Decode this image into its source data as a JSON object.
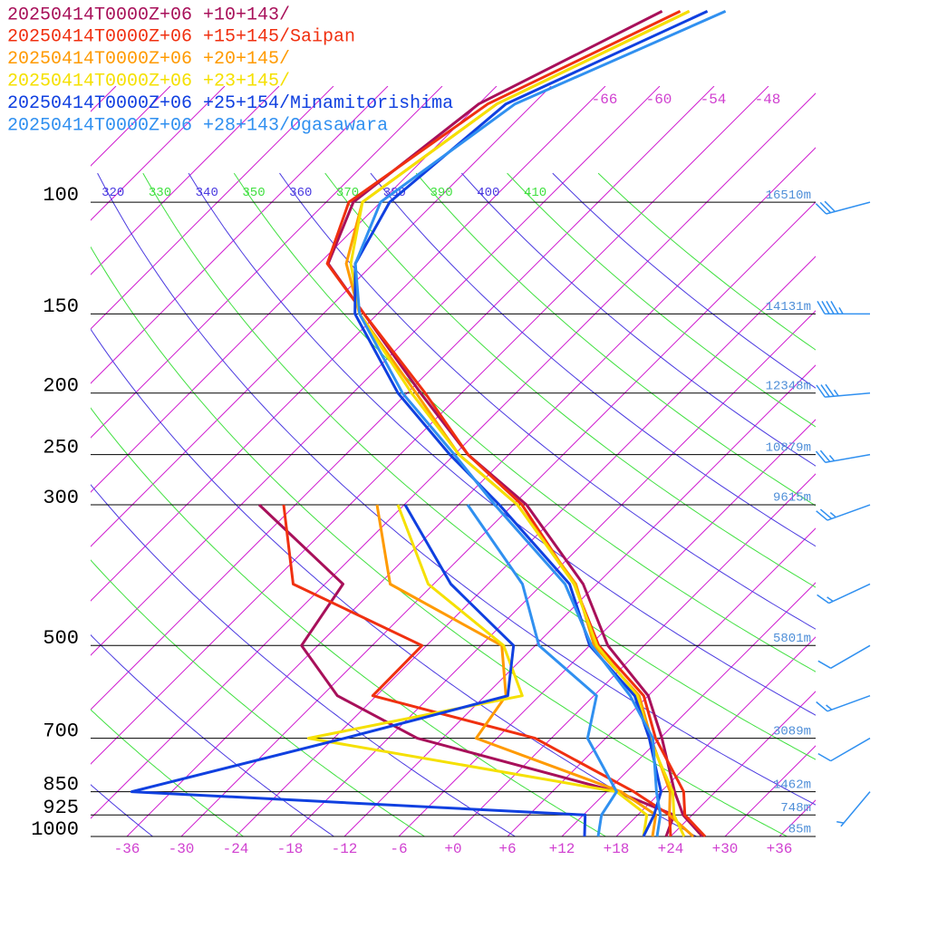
{
  "chart_data": {
    "type": "skewt",
    "levels": [
      1000,
      925,
      850,
      700,
      600,
      500,
      400,
      300,
      250,
      200,
      150,
      125,
      100,
      70,
      50
    ],
    "series": [
      {
        "name": "20250414T0000Z+06 +10+143/",
        "color": "#a8105a",
        "temperature": [
          27.5,
          23,
          19.5,
          12.2,
          6,
          -4,
          -13.5,
          -28.5,
          -40.5,
          -52.5,
          -67.5,
          -77,
          -81,
          -78,
          -68
        ],
        "dewpoint": [
          23.5,
          22,
          13.1,
          -14.8,
          -28.3,
          -37.8,
          -40,
          -58,
          null,
          null,
          null,
          null,
          null,
          null,
          null
        ]
      },
      {
        "name": "20250414T0000Z+06 +15+145/Saipan",
        "color": "#f03010",
        "temperature": [
          27.8,
          23.2,
          20.5,
          11.5,
          5.5,
          -5,
          -14.5,
          -29,
          -40.5,
          -52,
          -67.5,
          -77.1,
          -81.5,
          -77,
          -66
        ],
        "dewpoint": [
          24,
          21.5,
          15,
          -1.8,
          -24.4,
          -24.5,
          -45.5,
          -55.3,
          null,
          null,
          null,
          null,
          null,
          null,
          null
        ]
      },
      {
        "name": "20250414T0000Z+06 +20+145/",
        "color": "#ff9a00",
        "temperature": [
          26.5,
          21.5,
          19,
          11,
          5,
          -5.5,
          -14.3,
          -29.5,
          -41.5,
          -53,
          -68,
          -75,
          -80,
          -76,
          -65
        ],
        "dewpoint": [
          22,
          20,
          13.6,
          -8.3,
          -9.7,
          -15.7,
          -34.8,
          -45,
          null,
          null,
          null,
          null,
          null,
          null,
          null
        ]
      },
      {
        "name": "20250414T0000Z+06 +23+145/",
        "color": "#f5e000",
        "temperature": [
          25.5,
          22,
          19.3,
          10.8,
          4.8,
          -5.2,
          -14.5,
          -29.5,
          -41.5,
          -53.5,
          -68,
          -74.5,
          -80,
          -76,
          -65
        ],
        "dewpoint": [
          21,
          19,
          13.1,
          -26.8,
          -7.9,
          -15.5,
          -30.6,
          -42.7,
          null,
          null,
          null,
          null,
          null,
          null,
          null
        ]
      },
      {
        "name": "20250414T0000Z+06 +25+154/Minamitorishima",
        "color": "#1040e0",
        "temperature": [
          21,
          19.8,
          18,
          10.8,
          4.5,
          -6,
          -15,
          -31.5,
          -42.5,
          -55,
          -68.5,
          -74,
          -77,
          -75,
          -63
        ],
        "dewpoint": [
          14.5,
          12.2,
          -40.4,
          -22.8,
          -9.5,
          -14.4,
          -28.1,
          -41.9,
          null,
          null,
          null,
          null,
          null,
          null,
          null
        ]
      },
      {
        "name": "20250414T0000Z+06 +28+143/Ogasawara",
        "color": "#3090f0",
        "temperature": [
          22.5,
          20.5,
          17.5,
          11.2,
          4,
          -5.8,
          -15.5,
          -32,
          -42,
          -54.5,
          -68,
          -74,
          -78,
          -74,
          -61
        ],
        "dewpoint": [
          16,
          14,
          13.1,
          4,
          0.3,
          -11.6,
          -20.2,
          -35,
          null,
          null,
          null,
          null,
          null,
          null,
          null
        ]
      }
    ],
    "ylim": [
      1000,
      48
    ],
    "yscale": "log",
    "yticks": [
      100,
      150,
      200,
      250,
      300,
      500,
      700,
      850,
      925,
      1000
    ],
    "height_labels": [
      "16510m",
      "14131m",
      "12348m",
      "10879m",
      "9615m",
      "5801m",
      "3089m",
      "1462m",
      "748m",
      "85m"
    ],
    "xlim": [
      -40,
      40
    ],
    "xticks": [
      -36,
      -30,
      -24,
      -18,
      -12,
      -6,
      {
        "value": 0,
        "label": "+0"
      },
      {
        "value": 6,
        "label": "+6"
      },
      {
        "value": 12,
        "label": "+12"
      },
      {
        "value": 18,
        "label": "+18"
      },
      {
        "value": 24,
        "label": "+24"
      },
      {
        "value": 30,
        "label": "+30"
      },
      {
        "value": 36,
        "label": "+36"
      }
    ],
    "isotherm_labels": [
      -66,
      -60,
      -54,
      -48
    ],
    "theta_labels": [
      320,
      330,
      340,
      350,
      360,
      370,
      380,
      390,
      400,
      410
    ],
    "winds": {
      "levels": [
        100,
        150,
        200,
        250,
        300,
        400,
        500,
        600,
        700,
        850
      ],
      "direction": [
        255,
        270,
        265,
        260,
        250,
        245,
        240,
        250,
        240,
        220
      ],
      "speed": [
        30,
        45,
        35,
        25,
        25,
        15,
        10,
        15,
        10,
        5
      ]
    }
  }
}
